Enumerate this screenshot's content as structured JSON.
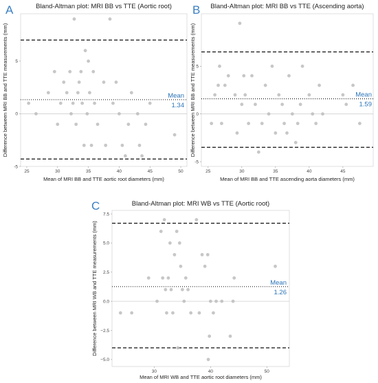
{
  "chart_data": [
    {
      "type": "scatter",
      "panel_label": "A",
      "title": "Bland-Altman plot: MRI BB vs TTE (Aortic root)",
      "xlabel": "Mean of MRI BB and TTE aortic root diameters (mm)",
      "ylabel": "Difference between MRI BB and TTE measurements (mm)",
      "xlim": [
        24,
        51
      ],
      "ylim": [
        -5,
        9.5
      ],
      "xticks": [
        25,
        30,
        35,
        40,
        45,
        50
      ],
      "yticks": [
        -5,
        0,
        5
      ],
      "mean": 1.34,
      "mean_label": "Mean",
      "mean_value_label": "1.34",
      "loa_upper": 7.0,
      "loa_lower": -4.3,
      "zero_line": 0,
      "grid": false,
      "point_color": "#bdbdbd",
      "points": [
        {
          "x": 25.3,
          "y": 1
        },
        {
          "x": 26.5,
          "y": 0
        },
        {
          "x": 28.5,
          "y": 2
        },
        {
          "x": 29.5,
          "y": 4
        },
        {
          "x": 30,
          "y": -1
        },
        {
          "x": 30.5,
          "y": 1
        },
        {
          "x": 31,
          "y": 3
        },
        {
          "x": 31.5,
          "y": 2
        },
        {
          "x": 32,
          "y": 4
        },
        {
          "x": 32.2,
          "y": 0
        },
        {
          "x": 32.5,
          "y": 1
        },
        {
          "x": 32.7,
          "y": 9
        },
        {
          "x": 33,
          "y": -1
        },
        {
          "x": 33.3,
          "y": 2
        },
        {
          "x": 33.5,
          "y": 3
        },
        {
          "x": 33.8,
          "y": 4
        },
        {
          "x": 34,
          "y": 1
        },
        {
          "x": 34.3,
          "y": -3
        },
        {
          "x": 34.5,
          "y": 6
        },
        {
          "x": 34.8,
          "y": 0
        },
        {
          "x": 35,
          "y": 5
        },
        {
          "x": 35.2,
          "y": 2
        },
        {
          "x": 35.5,
          "y": -3
        },
        {
          "x": 35.8,
          "y": 4
        },
        {
          "x": 36,
          "y": 1
        },
        {
          "x": 36.5,
          "y": -1
        },
        {
          "x": 37.5,
          "y": 3
        },
        {
          "x": 37.8,
          "y": -3
        },
        {
          "x": 38.5,
          "y": 9
        },
        {
          "x": 39,
          "y": 1
        },
        {
          "x": 39.5,
          "y": 3
        },
        {
          "x": 40,
          "y": 0
        },
        {
          "x": 40.5,
          "y": -3
        },
        {
          "x": 41,
          "y": -4
        },
        {
          "x": 41.5,
          "y": -1
        },
        {
          "x": 42,
          "y": 2
        },
        {
          "x": 43,
          "y": 0
        },
        {
          "x": 43.3,
          "y": -3
        },
        {
          "x": 43.7,
          "y": -4
        },
        {
          "x": 44.3,
          "y": -1
        },
        {
          "x": 45,
          "y": 1
        },
        {
          "x": 49,
          "y": -2
        }
      ]
    },
    {
      "type": "scatter",
      "panel_label": "B",
      "title": "Bland-Altman plot: MRI BB vs TTE (Ascending aorta)",
      "xlabel": "Mean of MRI BB and TTE ascending aorta diameters (mm)",
      "ylabel": "Difference between MRI BB and TTE measurements (mm)",
      "xlim": [
        24,
        49.5
      ],
      "ylim": [
        -5.5,
        10.5
      ],
      "xticks": [
        25,
        30,
        35,
        40,
        45
      ],
      "yticks": [
        -5,
        0,
        5
      ],
      "mean": 1.59,
      "mean_label": "Mean",
      "mean_value_label": "1.59",
      "loa_upper": 6.5,
      "loa_lower": -3.5,
      "zero_line": 0,
      "grid": false,
      "point_color": "#bdbdbd",
      "points": [
        {
          "x": 25.5,
          "y": -1
        },
        {
          "x": 26,
          "y": 2
        },
        {
          "x": 26.5,
          "y": 3
        },
        {
          "x": 26.7,
          "y": 5
        },
        {
          "x": 27,
          "y": -1
        },
        {
          "x": 27.5,
          "y": 3
        },
        {
          "x": 28,
          "y": 4
        },
        {
          "x": 29,
          "y": 2
        },
        {
          "x": 29.3,
          "y": -2
        },
        {
          "x": 29.7,
          "y": 9.5
        },
        {
          "x": 30,
          "y": 1
        },
        {
          "x": 30.3,
          "y": 4
        },
        {
          "x": 30.5,
          "y": 2
        },
        {
          "x": 31,
          "y": -1
        },
        {
          "x": 31.5,
          "y": 4
        },
        {
          "x": 32,
          "y": 1
        },
        {
          "x": 32.5,
          "y": -4
        },
        {
          "x": 33,
          "y": -1
        },
        {
          "x": 33.5,
          "y": 3
        },
        {
          "x": 34,
          "y": 0
        },
        {
          "x": 34.5,
          "y": 5
        },
        {
          "x": 35,
          "y": -2
        },
        {
          "x": 35.5,
          "y": 2
        },
        {
          "x": 36,
          "y": 1
        },
        {
          "x": 36.3,
          "y": -1
        },
        {
          "x": 36.7,
          "y": -2
        },
        {
          "x": 37,
          "y": 4
        },
        {
          "x": 37.5,
          "y": 0
        },
        {
          "x": 38,
          "y": -3
        },
        {
          "x": 38.3,
          "y": -1
        },
        {
          "x": 38.7,
          "y": 1
        },
        {
          "x": 39,
          "y": 5
        },
        {
          "x": 40,
          "y": 2
        },
        {
          "x": 40.5,
          "y": 0
        },
        {
          "x": 41,
          "y": -1
        },
        {
          "x": 41.5,
          "y": 3
        },
        {
          "x": 42,
          "y": 0
        },
        {
          "x": 45,
          "y": 2
        },
        {
          "x": 45.5,
          "y": 1
        },
        {
          "x": 46.5,
          "y": 3
        },
        {
          "x": 47.5,
          "y": -1
        }
      ]
    },
    {
      "type": "scatter",
      "panel_label": "C",
      "title": "Bland-Altman plot: MRI WB vs TTE (Aortic root)",
      "xlabel": "Mean of MRI WB and TTE aortic root diameters (mm)",
      "ylabel": "Difference between MRI WB and TTE measurements (mm)",
      "xlim": [
        22.5,
        54
      ],
      "ylim": [
        -5.6,
        7.8
      ],
      "xticks": [
        30,
        40,
        50
      ],
      "yticks": [
        -5.0,
        -2.5,
        0.0,
        2.5,
        5.0,
        7.5
      ],
      "ytick_labels": [
        "−5.0",
        "−2.5",
        "0.0",
        "2.5",
        "5.0",
        "7.5"
      ],
      "mean": 1.26,
      "mean_label": "Mean",
      "mean_value_label": "1.26",
      "loa_upper": 6.7,
      "loa_lower": -4.0,
      "zero_line": 0,
      "grid": false,
      "point_color": "#bdbdbd",
      "points": [
        {
          "x": 24,
          "y": -1
        },
        {
          "x": 26,
          "y": -1
        },
        {
          "x": 29,
          "y": 2
        },
        {
          "x": 30.5,
          "y": 0
        },
        {
          "x": 31.2,
          "y": 6
        },
        {
          "x": 31.5,
          "y": 2
        },
        {
          "x": 31.8,
          "y": 7
        },
        {
          "x": 32,
          "y": 1
        },
        {
          "x": 32.2,
          "y": -1
        },
        {
          "x": 32.5,
          "y": 2
        },
        {
          "x": 32.8,
          "y": 5
        },
        {
          "x": 33,
          "y": 1
        },
        {
          "x": 33.3,
          "y": -1
        },
        {
          "x": 33.6,
          "y": 4
        },
        {
          "x": 34,
          "y": 6
        },
        {
          "x": 34.2,
          "y": -4
        },
        {
          "x": 34.5,
          "y": 5
        },
        {
          "x": 34.7,
          "y": 3
        },
        {
          "x": 35,
          "y": 1
        },
        {
          "x": 35.3,
          "y": 0
        },
        {
          "x": 35.6,
          "y": 2
        },
        {
          "x": 36,
          "y": 1
        },
        {
          "x": 36.5,
          "y": -1
        },
        {
          "x": 37.5,
          "y": 7
        },
        {
          "x": 38,
          "y": -1
        },
        {
          "x": 38.5,
          "y": 4
        },
        {
          "x": 39,
          "y": 3
        },
        {
          "x": 39.5,
          "y": 4
        },
        {
          "x": 39.8,
          "y": -3
        },
        {
          "x": 40,
          "y": 0
        },
        {
          "x": 40.5,
          "y": -1
        },
        {
          "x": 41,
          "y": 0
        },
        {
          "x": 42,
          "y": 0
        },
        {
          "x": 43.5,
          "y": -3
        },
        {
          "x": 44,
          "y": 0
        },
        {
          "x": 44.2,
          "y": 2
        },
        {
          "x": 39.6,
          "y": -5
        },
        {
          "x": 51.5,
          "y": 3
        }
      ]
    }
  ]
}
